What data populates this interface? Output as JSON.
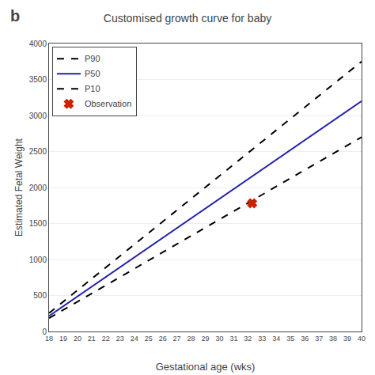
{
  "chart_data": {
    "type": "line",
    "title": "Customised growth curve for baby",
    "xlabel": "Gestational age (wks)",
    "ylabel": "Estimated Fetal Weight",
    "annotations": [
      "b"
    ],
    "series": [
      {
        "name": "P90",
        "x": [
          18,
          40
        ],
        "values": [
          255,
          3750
        ],
        "color": "#000000",
        "line_style": "dashed"
      },
      {
        "name": "P50",
        "x": [
          18,
          40
        ],
        "values": [
          215,
          3200
        ],
        "color": "#2222aa",
        "line_style": "solid"
      },
      {
        "name": "P10",
        "x": [
          18,
          40
        ],
        "values": [
          185,
          2700
        ],
        "color": "#000000",
        "line_style": "dashed"
      },
      {
        "name": "Observation",
        "type": "scatter",
        "x": [
          32.3
        ],
        "values": [
          1780
        ],
        "color": "#cc2200",
        "marker": "x"
      }
    ],
    "xlim": [
      18,
      40
    ],
    "ylim": [
      0,
      4000
    ],
    "xticks": [
      18,
      19,
      20,
      21,
      22,
      23,
      24,
      25,
      26,
      27,
      28,
      29,
      30,
      31,
      32,
      33,
      34,
      35,
      36,
      37,
      38,
      39,
      40
    ],
    "yticks": [
      0,
      500,
      1000,
      1500,
      2000,
      2500,
      3000,
      3500,
      4000
    ],
    "grid": "y",
    "legend": "upper left"
  }
}
